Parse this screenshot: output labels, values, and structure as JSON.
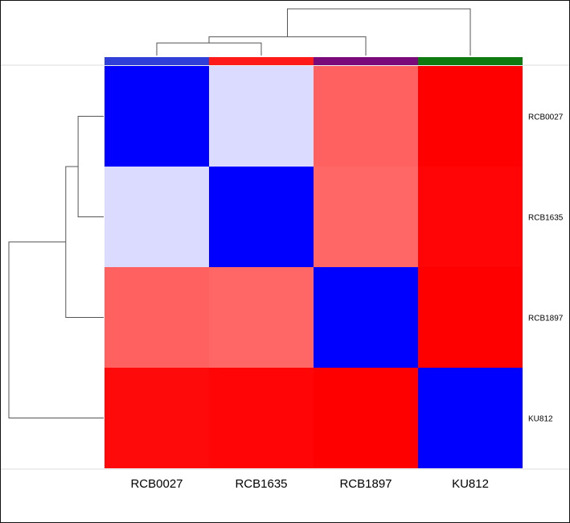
{
  "chart_data": {
    "type": "heatmap",
    "title": "",
    "xlabel": "",
    "ylabel": "",
    "columns": [
      "RCB0027",
      "RCB1635",
      "RCB1897",
      "KU812"
    ],
    "rows": [
      "RCB0027",
      "RCB1635",
      "RCB1897",
      "KU812"
    ],
    "matrix": [
      [
        0.0,
        0.43,
        0.81,
        1.0
      ],
      [
        0.43,
        0.0,
        0.8,
        0.99
      ],
      [
        0.81,
        0.8,
        0.0,
        1.0
      ],
      [
        0.98,
        0.99,
        1.0,
        0.0
      ]
    ],
    "color_scale": {
      "low": "#0000ff",
      "mid": "#ffffff",
      "high": "#ff0000"
    },
    "column_annotation_colors": [
      "#2f3fd8",
      "#ff1a1a",
      "#7a0a7a",
      "#0f7a0f"
    ],
    "column_dendrogram": [
      {
        "merge": [
          "RCB0027",
          "RCB1635"
        ],
        "height": 0.27
      },
      {
        "merge": [
          "RCB0027+RCB1635",
          "RCB1897"
        ],
        "height": 0.4
      },
      {
        "merge": [
          "RCB0027+RCB1635+RCB1897",
          "KU812"
        ],
        "height": 1.0
      }
    ],
    "row_dendrogram": [
      {
        "merge": [
          "RCB0027",
          "RCB1635"
        ],
        "height": 0.27
      },
      {
        "merge": [
          "RCB0027+RCB1635",
          "RCB1897"
        ],
        "height": 0.4
      },
      {
        "merge": [
          "RCB0027+RCB1635+RCB1897",
          "KU812"
        ],
        "height": 1.0
      }
    ]
  }
}
